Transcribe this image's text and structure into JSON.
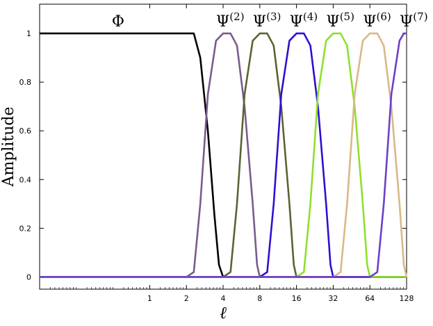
{
  "chart_data": {
    "type": "line",
    "title": "",
    "xlabel": "ℓ",
    "ylabel": "Amplitude",
    "x_scale": "log2",
    "xlim": [
      0.125,
      128
    ],
    "ylim": [
      -0.05,
      1.12
    ],
    "x_ticks": [
      {
        "value": 1,
        "label": "1"
      },
      {
        "value": 2,
        "label": "2"
      },
      {
        "value": 4,
        "label": "4"
      },
      {
        "value": 8,
        "label": "8"
      },
      {
        "value": 16,
        "label": "16"
      },
      {
        "value": 32,
        "label": "32"
      },
      {
        "value": 64,
        "label": "64"
      },
      {
        "value": 128,
        "label": "128"
      }
    ],
    "y_ticks": [
      {
        "value": 0,
        "label": "0"
      },
      {
        "value": 0.2,
        "label": "0.2"
      },
      {
        "value": 0.4,
        "label": "0.4"
      },
      {
        "value": 0.6,
        "label": "0.6"
      },
      {
        "value": 0.8,
        "label": "0.8"
      },
      {
        "value": 1,
        "label": "1"
      }
    ],
    "grid": false,
    "series": [
      {
        "name": "Φ",
        "base": "Φ",
        "sup": "",
        "color": "#000000",
        "x": [
          0.125,
          1,
          2,
          2.3,
          2.6,
          3,
          3.4,
          3.7,
          4,
          128
        ],
        "y": [
          1,
          1,
          1,
          1,
          0.9,
          0.6,
          0.25,
          0.05,
          0,
          0
        ]
      },
      {
        "name": "Ψ(2)",
        "base": "Ψ",
        "sup": "(2)",
        "color": "#7b5a8c",
        "x": [
          0.125,
          2,
          2.3,
          2.6,
          3,
          3.5,
          4,
          4.6,
          5.2,
          6,
          7,
          7.6,
          8,
          128
        ],
        "y": [
          0,
          0,
          0.02,
          0.3,
          0.75,
          0.97,
          1,
          1,
          0.95,
          0.7,
          0.3,
          0.05,
          0,
          0
        ]
      },
      {
        "name": "Ψ(3)",
        "base": "Ψ",
        "sup": "(3)",
        "color": "#5c6331",
        "x": [
          0.125,
          4,
          4.6,
          5.2,
          6,
          7,
          8,
          9.2,
          10.4,
          12,
          14,
          15.2,
          16,
          128
        ],
        "y": [
          0,
          0,
          0.02,
          0.3,
          0.75,
          0.97,
          1,
          1,
          0.95,
          0.7,
          0.3,
          0.05,
          0,
          0
        ]
      },
      {
        "name": "Ψ(4)",
        "base": "Ψ",
        "sup": "(4)",
        "color": "#2e0fd2",
        "x": [
          0.125,
          8,
          9.2,
          10.4,
          12,
          14,
          16,
          18.4,
          20.8,
          24,
          28,
          30.4,
          32,
          128
        ],
        "y": [
          0,
          0,
          0.02,
          0.3,
          0.75,
          0.97,
          1,
          1,
          0.95,
          0.7,
          0.3,
          0.05,
          0,
          0
        ]
      },
      {
        "name": "Ψ(5)",
        "base": "Ψ",
        "sup": "(5)",
        "color": "#8ee02b",
        "x": [
          0.125,
          16,
          18.4,
          20.8,
          24,
          28,
          32,
          36.8,
          41.6,
          48,
          56,
          60.8,
          64,
          128
        ],
        "y": [
          0,
          0,
          0.02,
          0.3,
          0.75,
          0.97,
          1,
          1,
          0.95,
          0.7,
          0.3,
          0.05,
          0,
          0
        ]
      },
      {
        "name": "Ψ(6)",
        "base": "Ψ",
        "sup": "(6)",
        "color": "#d9b887",
        "x": [
          0.125,
          32,
          36.8,
          41.6,
          48,
          56,
          64,
          73.6,
          83.2,
          96,
          112,
          121.6,
          128
        ],
        "y": [
          0,
          0,
          0.02,
          0.3,
          0.75,
          0.97,
          1,
          1,
          0.95,
          0.7,
          0.3,
          0.05,
          0
        ]
      },
      {
        "name": "Ψ(7)",
        "base": "Ψ",
        "sup": "(7)",
        "color": "#6a40c8",
        "x": [
          0.125,
          64,
          73.6,
          83.2,
          96,
          112,
          121.6,
          128
        ],
        "y": [
          0,
          0,
          0.02,
          0.3,
          0.75,
          0.97,
          1,
          1
        ]
      }
    ],
    "annotations": [
      {
        "series": 0,
        "x": 0.55
      },
      {
        "series": 1,
        "x": 4
      },
      {
        "series": 2,
        "x": 8
      },
      {
        "series": 3,
        "x": 16
      },
      {
        "series": 4,
        "x": 32
      },
      {
        "series": 5,
        "x": 64
      },
      {
        "series": 6,
        "x": 128
      }
    ]
  }
}
